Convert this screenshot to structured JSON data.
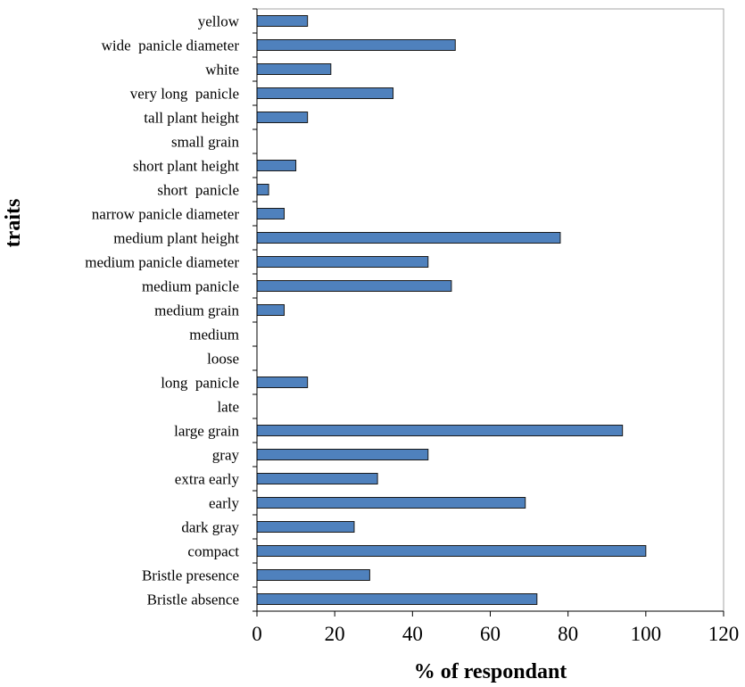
{
  "chart_data": {
    "type": "bar",
    "orientation": "horizontal",
    "xlabel": "% of respondant",
    "ylabel": "traits",
    "xlim": [
      0,
      120
    ],
    "xticks": [
      0,
      20,
      40,
      60,
      80,
      100,
      120
    ],
    "grid": false,
    "bar_color": "#4f81bd",
    "categories": [
      "yellow",
      "wide  panicle diameter",
      "white",
      "very long  panicle",
      "tall plant height",
      "small grain",
      "short plant height",
      "short  panicle",
      "narrow panicle diameter",
      "medium plant height",
      "medium panicle diameter",
      "medium panicle",
      "medium grain",
      "medium",
      "loose",
      "long  panicle",
      "late",
      "large grain",
      "gray",
      "extra early",
      "early",
      "dark gray",
      "compact",
      "Bristle presence",
      "Bristle absence"
    ],
    "values": [
      13,
      51,
      19,
      35,
      13,
      0,
      10,
      3,
      7,
      78,
      44,
      50,
      7,
      0,
      0,
      13,
      0,
      94,
      44,
      31,
      69,
      25,
      100,
      29,
      72
    ]
  }
}
